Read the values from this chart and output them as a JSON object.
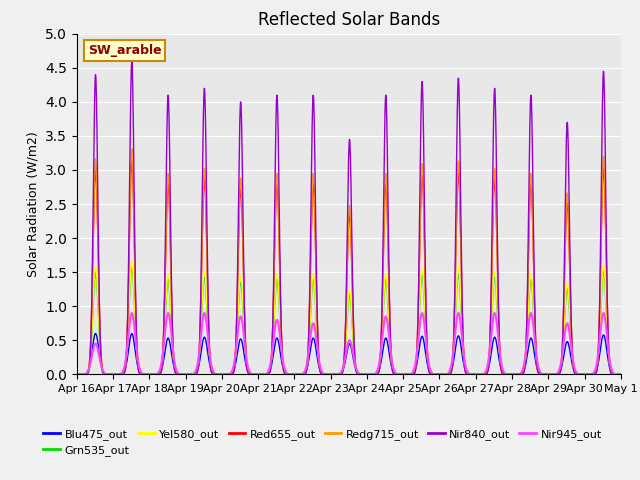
{
  "title": "Reflected Solar Bands",
  "ylabel": "Solar Radiation (W/m2)",
  "annotation": "SW_arable",
  "ylim": [
    0.0,
    5.0
  ],
  "yticks": [
    0.0,
    0.5,
    1.0,
    1.5,
    2.0,
    2.5,
    3.0,
    3.5,
    4.0,
    4.5,
    5.0
  ],
  "xtick_labels": [
    "Apr 16",
    "Apr 17",
    "Apr 18",
    "Apr 19",
    "Apr 20",
    "Apr 21",
    "Apr 22",
    "Apr 23",
    "Apr 24",
    "Apr 25",
    "Apr 26",
    "Apr 27",
    "Apr 28",
    "Apr 29",
    "Apr 30",
    "May 1"
  ],
  "series_order": [
    "Blu475_out",
    "Grn535_out",
    "Yel580_out",
    "Red655_out",
    "Redg715_out",
    "Nir840_out",
    "Nir945_out"
  ],
  "series": {
    "Blu475_out": {
      "color": "#0000ff",
      "lw": 1.0
    },
    "Grn535_out": {
      "color": "#00dd00",
      "lw": 1.0
    },
    "Yel580_out": {
      "color": "#ffff00",
      "lw": 1.0
    },
    "Red655_out": {
      "color": "#ff0000",
      "lw": 1.0
    },
    "Redg715_out": {
      "color": "#ff9900",
      "lw": 1.0
    },
    "Nir840_out": {
      "color": "#9900cc",
      "lw": 1.0
    },
    "Nir945_out": {
      "color": "#ff44ff",
      "lw": 1.5
    }
  },
  "nir840_peaks": [
    4.4,
    4.6,
    4.1,
    4.2,
    4.0,
    4.1,
    4.1,
    3.45,
    4.1,
    4.3,
    4.35,
    4.2,
    4.1,
    3.7,
    4.45
  ],
  "redg715_scale": 0.72,
  "red655_scale": 0.68,
  "yel580_scale": 0.36,
  "grn535_scale": 0.34,
  "blu475_scale": 0.13,
  "nir945_peaks": [
    0.45,
    0.9,
    0.9,
    0.9,
    0.85,
    0.8,
    0.75,
    0.5,
    0.85,
    0.9,
    0.9,
    0.9,
    0.9,
    0.75,
    0.9
  ],
  "fig_bg": "#f0f0f0",
  "ax_bg": "#e8e8e8",
  "title_fontsize": 12,
  "label_fontsize": 9,
  "tick_fontsize": 8
}
